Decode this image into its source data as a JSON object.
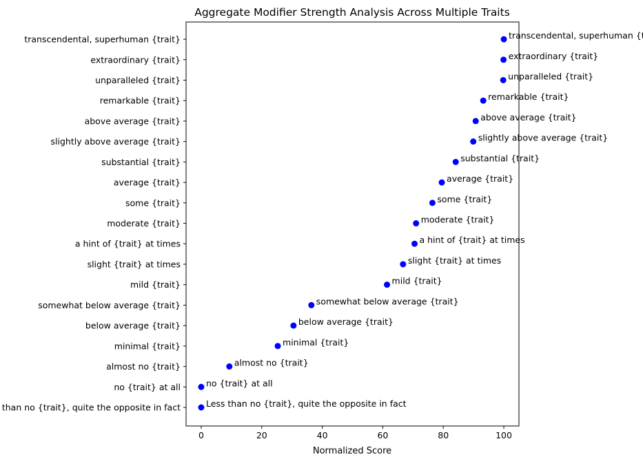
{
  "chart_data": {
    "type": "scatter",
    "title": "Aggregate Modifier Strength Analysis Across Multiple Traits",
    "xlabel": "Normalized Score",
    "ylabel": "",
    "xlim": [
      -5,
      105
    ],
    "xticks": [
      0,
      20,
      40,
      60,
      80,
      100
    ],
    "grid": false,
    "marker_color": "#0000ff",
    "categories": [
      "Less than no {trait}, quite the opposite in fact",
      "no {trait} at all",
      "almost no {trait}",
      "minimal {trait}",
      "below average {trait}",
      "somewhat below average {trait}",
      "mild {trait}",
      "slight {trait} at times",
      "a hint of {trait} at times",
      "moderate {trait}",
      "some {trait}",
      "average {trait}",
      "substantial {trait}",
      "slightly above average {trait}",
      "above average {trait}",
      "remarkable {trait}",
      "unparalleled {trait}",
      "extraordinary {trait}",
      "transcendental, superhuman {trait}"
    ],
    "values": [
      0,
      0,
      9.3,
      25.3,
      30.5,
      36.4,
      61.4,
      66.7,
      70.5,
      71.0,
      76.4,
      79.5,
      84.1,
      89.9,
      90.7,
      93.2,
      99.8,
      99.9,
      100
    ]
  }
}
